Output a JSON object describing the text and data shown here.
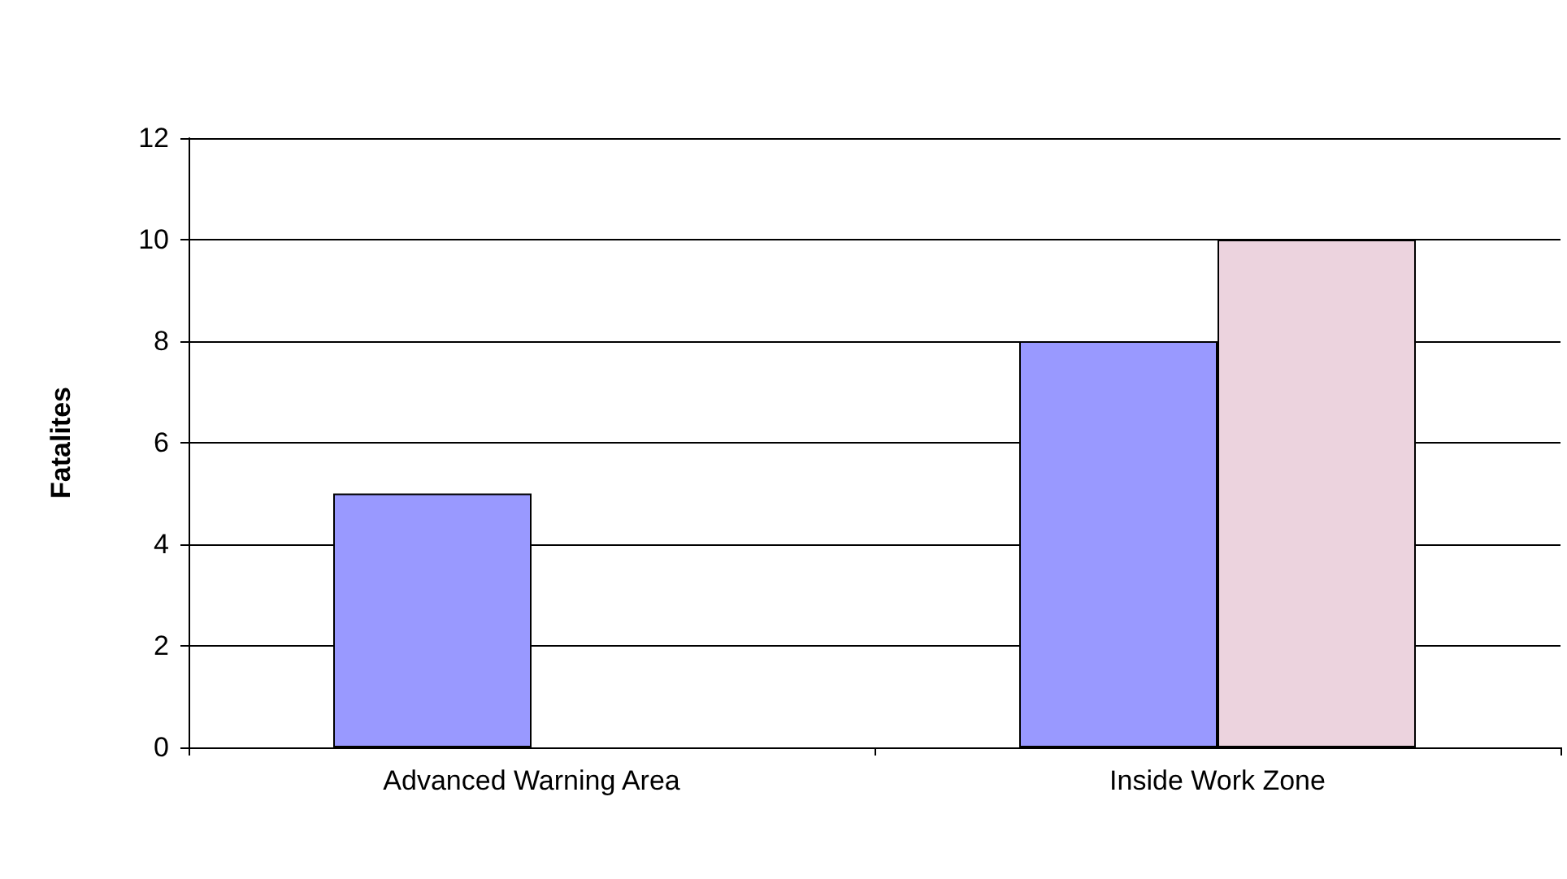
{
  "chart_data": {
    "type": "bar",
    "ylabel": "Fatalites",
    "categories": [
      "Advanced Warning Area",
      "Inside Work Zone"
    ],
    "series": [
      {
        "color": "#9999ff",
        "values": [
          5,
          8
        ]
      },
      {
        "color": "#ecd3de",
        "values": [
          null,
          10
        ]
      }
    ],
    "ylim": [
      0,
      12
    ],
    "yticks": [
      0,
      2,
      4,
      6,
      8,
      10,
      12
    ],
    "grid": "y"
  }
}
